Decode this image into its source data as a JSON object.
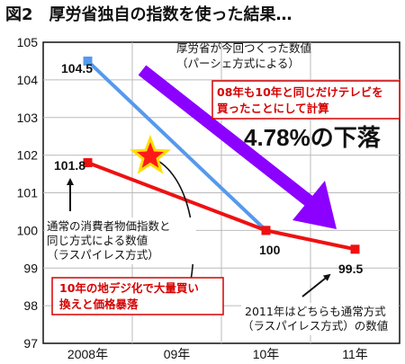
{
  "chart_data": {
    "type": "line",
    "title": "図2　厚労省独自の指数を使った結果…",
    "categories": [
      "2008年",
      "09年",
      "10年",
      "11年"
    ],
    "ylim": [
      97,
      105
    ],
    "yticks": [
      97,
      98,
      99,
      100,
      101,
      102,
      103,
      104,
      105
    ],
    "ytick_labels": [
      "97",
      "98",
      "99",
      "100",
      "101",
      "102",
      "103",
      "104",
      "105"
    ],
    "grid": true,
    "series": [
      {
        "name": "厚労省が今回つくった数値（パーシェ方式による）",
        "color": "#5599ee",
        "x": [
          0,
          2
        ],
        "values": [
          104.5,
          100
        ]
      },
      {
        "name": "通常の消費者物価指数と同じ方式による数値（ラスパイレス方式）",
        "color": "#ee1111",
        "x": [
          0,
          2,
          3
        ],
        "values": [
          101.8,
          100,
          99.5
        ]
      }
    ],
    "data_labels": [
      "104.5",
      "101.8",
      "100",
      "99.5"
    ],
    "annotations": {
      "paasche_label": [
        "厚労省が今回つくった数値",
        "（パーシェ方式による）"
      ],
      "tv_note": [
        "08年も10年と同じだけテレビを",
        "買ったことにして計算"
      ],
      "drop": "4.78%の下落",
      "laspeyres_label": [
        "通常の消費者物価指数と",
        "同じ方式による数値",
        "（ラスパイレス方式）"
      ],
      "digital_note": [
        "10年の地デジ化で大量買い",
        "換えと価格暴落"
      ],
      "note_2011": [
        "2011年はどちらも通常方式",
        "（ラスパイレス方式）の数値"
      ]
    },
    "colors": {
      "arrow": "#8b00ff",
      "star": "#ff1a1a",
      "star_outline": "#ffdd00",
      "label_text_red": "#d60000"
    }
  }
}
